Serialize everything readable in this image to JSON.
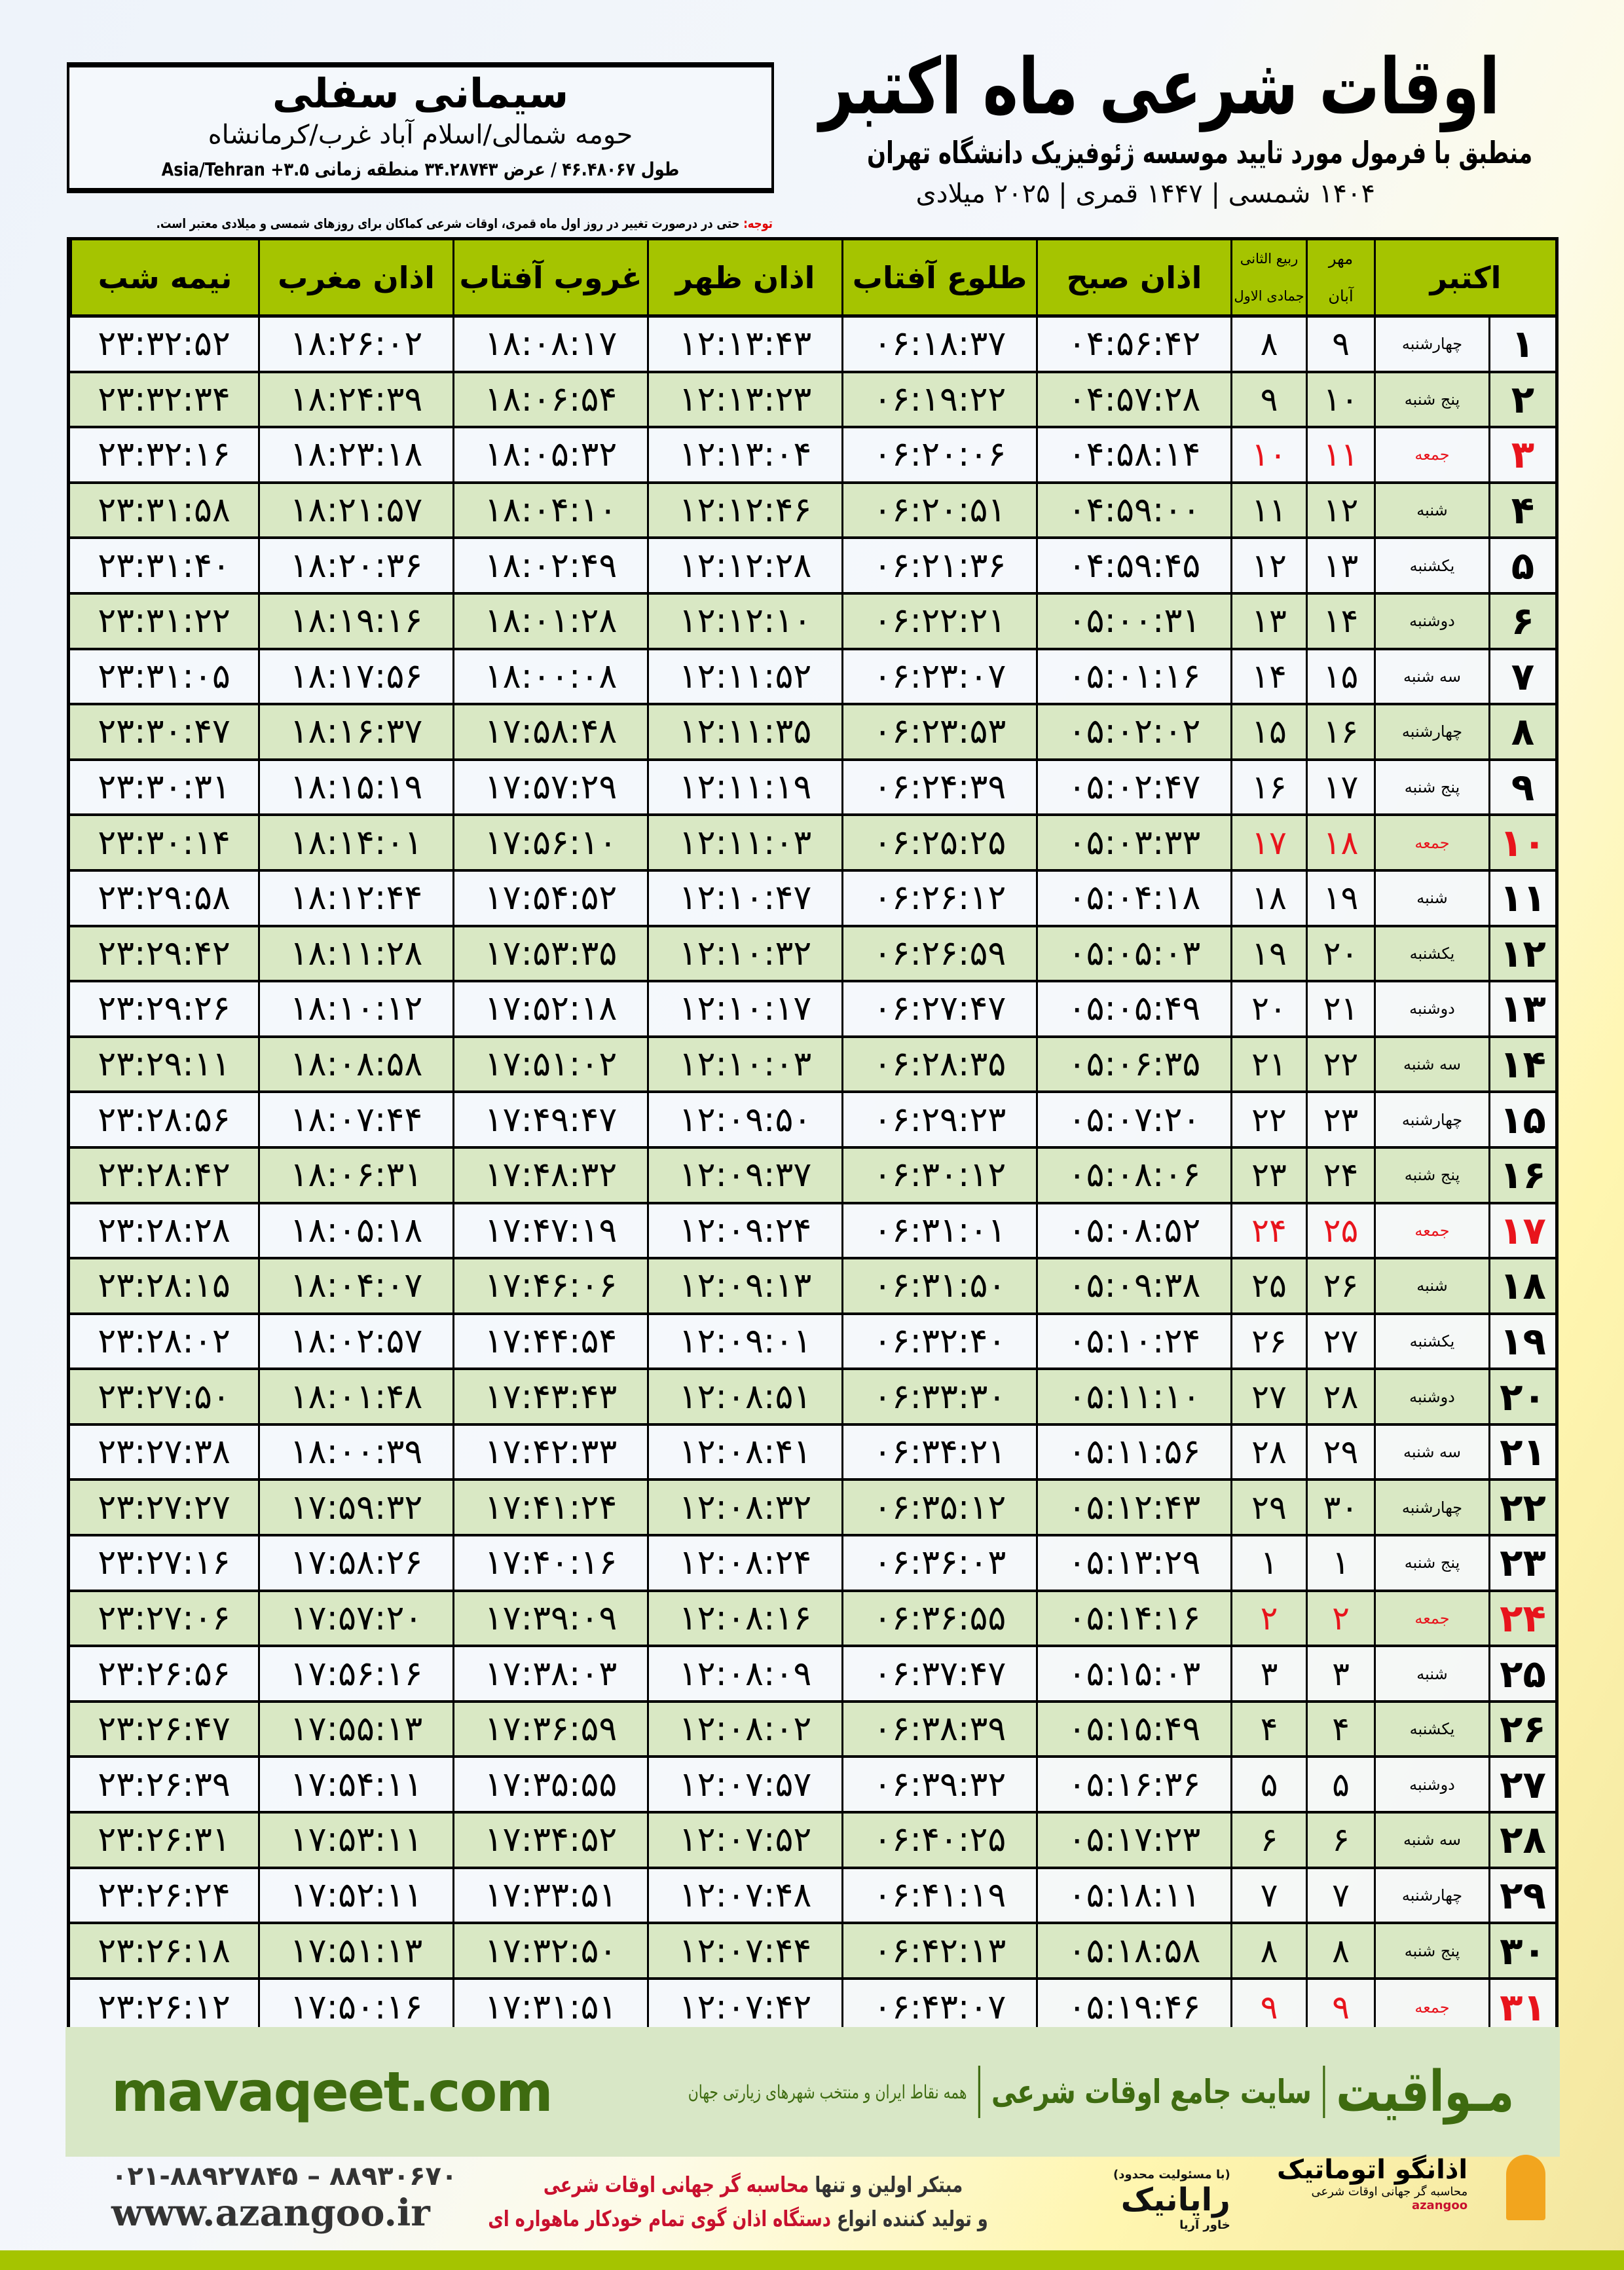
{
  "header": {
    "title": "اوقات شرعی ماه اکتبر",
    "subtitle": "منطبق با فرمول مورد تایید موسسه ژئوفیزیک دانشگاه تهران",
    "years": "۱۴۰۴ شمسی | ۱۴۴۷ قمری | ۲۰۲۵ میلادی"
  },
  "location": {
    "name": "سیمانی سفلی",
    "path": "حومه شمالی/اسلام آباد غرب/کرمانشاه",
    "coords": "طول ۴۶.۴۸۰۶۷ / عرض ۳۴.۲۸۷۴۳ منطقه زمانی ۳.۵+ Asia/Tehran"
  },
  "note": {
    "label": "توجه:",
    "text": " حتی در درصورت تغییر در روز اول ماه قمری، اوقات شرعی کماکان برای روزهای شمسی و میلادی معتبر است."
  },
  "colors": {
    "header_green": "#a5c400",
    "row_green": "#d9e8c4",
    "holiday_red": "#e8141c",
    "brand_green": "#3e6b10"
  },
  "table": {
    "headers": {
      "month": "اکتبر",
      "shamsi_top": "مهر",
      "shamsi_bottom": "آبان",
      "hijri_top": "ربیع الثانی",
      "hijri_bottom": "جمادی الاول",
      "fajr": "اذان صبح",
      "sunrise": "طلوع آفتاب",
      "dhuhr": "اذان ظهر",
      "sunset": "غروب آفتاب",
      "maghrib": "اذان مغرب",
      "midnight": "نیمه شب"
    },
    "rows": [
      [
        "۱",
        "چهارشنبه",
        "۹",
        "۸",
        "۰۴:۵۶:۴۲",
        "۰۶:۱۸:۳۷",
        "۱۲:۱۳:۴۳",
        "۱۸:۰۸:۱۷",
        "۱۸:۲۶:۰۲",
        "۲۳:۳۲:۵۲",
        false
      ],
      [
        "۲",
        "پنج شنبه",
        "۱۰",
        "۹",
        "۰۴:۵۷:۲۸",
        "۰۶:۱۹:۲۲",
        "۱۲:۱۳:۲۳",
        "۱۸:۰۶:۵۴",
        "۱۸:۲۴:۳۹",
        "۲۳:۳۲:۳۴",
        false
      ],
      [
        "۳",
        "جمعه",
        "۱۱",
        "۱۰",
        "۰۴:۵۸:۱۴",
        "۰۶:۲۰:۰۶",
        "۱۲:۱۳:۰۴",
        "۱۸:۰۵:۳۲",
        "۱۸:۲۳:۱۸",
        "۲۳:۳۲:۱۶",
        true
      ],
      [
        "۴",
        "شنبه",
        "۱۲",
        "۱۱",
        "۰۴:۵۹:۰۰",
        "۰۶:۲۰:۵۱",
        "۱۲:۱۲:۴۶",
        "۱۸:۰۴:۱۰",
        "۱۸:۲۱:۵۷",
        "۲۳:۳۱:۵۸",
        false
      ],
      [
        "۵",
        "یکشنبه",
        "۱۳",
        "۱۲",
        "۰۴:۵۹:۴۵",
        "۰۶:۲۱:۳۶",
        "۱۲:۱۲:۲۸",
        "۱۸:۰۲:۴۹",
        "۱۸:۲۰:۳۶",
        "۲۳:۳۱:۴۰",
        false
      ],
      [
        "۶",
        "دوشنبه",
        "۱۴",
        "۱۳",
        "۰۵:۰۰:۳۱",
        "۰۶:۲۲:۲۱",
        "۱۲:۱۲:۱۰",
        "۱۸:۰۱:۲۸",
        "۱۸:۱۹:۱۶",
        "۲۳:۳۱:۲۲",
        false
      ],
      [
        "۷",
        "سه شنبه",
        "۱۵",
        "۱۴",
        "۰۵:۰۱:۱۶",
        "۰۶:۲۳:۰۷",
        "۱۲:۱۱:۵۲",
        "۱۸:۰۰:۰۸",
        "۱۸:۱۷:۵۶",
        "۲۳:۳۱:۰۵",
        false
      ],
      [
        "۸",
        "چهارشنبه",
        "۱۶",
        "۱۵",
        "۰۵:۰۲:۰۲",
        "۰۶:۲۳:۵۳",
        "۱۲:۱۱:۳۵",
        "۱۷:۵۸:۴۸",
        "۱۸:۱۶:۳۷",
        "۲۳:۳۰:۴۷",
        false
      ],
      [
        "۹",
        "پنج شنبه",
        "۱۷",
        "۱۶",
        "۰۵:۰۲:۴۷",
        "۰۶:۲۴:۳۹",
        "۱۲:۱۱:۱۹",
        "۱۷:۵۷:۲۹",
        "۱۸:۱۵:۱۹",
        "۲۳:۳۰:۳۱",
        false
      ],
      [
        "۱۰",
        "جمعه",
        "۱۸",
        "۱۷",
        "۰۵:۰۳:۳۳",
        "۰۶:۲۵:۲۵",
        "۱۲:۱۱:۰۳",
        "۱۷:۵۶:۱۰",
        "۱۸:۱۴:۰۱",
        "۲۳:۳۰:۱۴",
        true
      ],
      [
        "۱۱",
        "شنبه",
        "۱۹",
        "۱۸",
        "۰۵:۰۴:۱۸",
        "۰۶:۲۶:۱۲",
        "۱۲:۱۰:۴۷",
        "۱۷:۵۴:۵۲",
        "۱۸:۱۲:۴۴",
        "۲۳:۲۹:۵۸",
        false
      ],
      [
        "۱۲",
        "یکشنبه",
        "۲۰",
        "۱۹",
        "۰۵:۰۵:۰۳",
        "۰۶:۲۶:۵۹",
        "۱۲:۱۰:۳۲",
        "۱۷:۵۳:۳۵",
        "۱۸:۱۱:۲۸",
        "۲۳:۲۹:۴۲",
        false
      ],
      [
        "۱۳",
        "دوشنبه",
        "۲۱",
        "۲۰",
        "۰۵:۰۵:۴۹",
        "۰۶:۲۷:۴۷",
        "۱۲:۱۰:۱۷",
        "۱۷:۵۲:۱۸",
        "۱۸:۱۰:۱۲",
        "۲۳:۲۹:۲۶",
        false
      ],
      [
        "۱۴",
        "سه شنبه",
        "۲۲",
        "۲۱",
        "۰۵:۰۶:۳۵",
        "۰۶:۲۸:۳۵",
        "۱۲:۱۰:۰۳",
        "۱۷:۵۱:۰۲",
        "۱۸:۰۸:۵۸",
        "۲۳:۲۹:۱۱",
        false
      ],
      [
        "۱۵",
        "چهارشنبه",
        "۲۳",
        "۲۲",
        "۰۵:۰۷:۲۰",
        "۰۶:۲۹:۲۳",
        "۱۲:۰۹:۵۰",
        "۱۷:۴۹:۴۷",
        "۱۸:۰۷:۴۴",
        "۲۳:۲۸:۵۶",
        false
      ],
      [
        "۱۶",
        "پنج شنبه",
        "۲۴",
        "۲۳",
        "۰۵:۰۸:۰۶",
        "۰۶:۳۰:۱۲",
        "۱۲:۰۹:۳۷",
        "۱۷:۴۸:۳۲",
        "۱۸:۰۶:۳۱",
        "۲۳:۲۸:۴۲",
        false
      ],
      [
        "۱۷",
        "جمعه",
        "۲۵",
        "۲۴",
        "۰۵:۰۸:۵۲",
        "۰۶:۳۱:۰۱",
        "۱۲:۰۹:۲۴",
        "۱۷:۴۷:۱۹",
        "۱۸:۰۵:۱۸",
        "۲۳:۲۸:۲۸",
        true
      ],
      [
        "۱۸",
        "شنبه",
        "۲۶",
        "۲۵",
        "۰۵:۰۹:۳۸",
        "۰۶:۳۱:۵۰",
        "۱۲:۰۹:۱۳",
        "۱۷:۴۶:۰۶",
        "۱۸:۰۴:۰۷",
        "۲۳:۲۸:۱۵",
        false
      ],
      [
        "۱۹",
        "یکشنبه",
        "۲۷",
        "۲۶",
        "۰۵:۱۰:۲۴",
        "۰۶:۳۲:۴۰",
        "۱۲:۰۹:۰۱",
        "۱۷:۴۴:۵۴",
        "۱۸:۰۲:۵۷",
        "۲۳:۲۸:۰۲",
        false
      ],
      [
        "۲۰",
        "دوشنبه",
        "۲۸",
        "۲۷",
        "۰۵:۱۱:۱۰",
        "۰۶:۳۳:۳۰",
        "۱۲:۰۸:۵۱",
        "۱۷:۴۳:۴۳",
        "۱۸:۰۱:۴۸",
        "۲۳:۲۷:۵۰",
        false
      ],
      [
        "۲۱",
        "سه شنبه",
        "۲۹",
        "۲۸",
        "۰۵:۱۱:۵۶",
        "۰۶:۳۴:۲۱",
        "۱۲:۰۸:۴۱",
        "۱۷:۴۲:۳۳",
        "۱۸:۰۰:۳۹",
        "۲۳:۲۷:۳۸",
        false
      ],
      [
        "۲۲",
        "چهارشنبه",
        "۳۰",
        "۲۹",
        "۰۵:۱۲:۴۳",
        "۰۶:۳۵:۱۲",
        "۱۲:۰۸:۳۲",
        "۱۷:۴۱:۲۴",
        "۱۷:۵۹:۳۲",
        "۲۳:۲۷:۲۷",
        false
      ],
      [
        "۲۳",
        "پنج شنبه",
        "۱",
        "۱",
        "۰۵:۱۳:۲۹",
        "۰۶:۳۶:۰۳",
        "۱۲:۰۸:۲۴",
        "۱۷:۴۰:۱۶",
        "۱۷:۵۸:۲۶",
        "۲۳:۲۷:۱۶",
        false
      ],
      [
        "۲۴",
        "جمعه",
        "۲",
        "۲",
        "۰۵:۱۴:۱۶",
        "۰۶:۳۶:۵۵",
        "۱۲:۰۸:۱۶",
        "۱۷:۳۹:۰۹",
        "۱۷:۵۷:۲۰",
        "۲۳:۲۷:۰۶",
        true
      ],
      [
        "۲۵",
        "شنبه",
        "۳",
        "۳",
        "۰۵:۱۵:۰۳",
        "۰۶:۳۷:۴۷",
        "۱۲:۰۸:۰۹",
        "۱۷:۳۸:۰۳",
        "۱۷:۵۶:۱۶",
        "۲۳:۲۶:۵۶",
        false
      ],
      [
        "۲۶",
        "یکشنبه",
        "۴",
        "۴",
        "۰۵:۱۵:۴۹",
        "۰۶:۳۸:۳۹",
        "۱۲:۰۸:۰۲",
        "۱۷:۳۶:۵۹",
        "۱۷:۵۵:۱۳",
        "۲۳:۲۶:۴۷",
        false
      ],
      [
        "۲۷",
        "دوشنبه",
        "۵",
        "۵",
        "۰۵:۱۶:۳۶",
        "۰۶:۳۹:۳۲",
        "۱۲:۰۷:۵۷",
        "۱۷:۳۵:۵۵",
        "۱۷:۵۴:۱۱",
        "۲۳:۲۶:۳۹",
        false
      ],
      [
        "۲۸",
        "سه شنبه",
        "۶",
        "۶",
        "۰۵:۱۷:۲۳",
        "۰۶:۴۰:۲۵",
        "۱۲:۰۷:۵۲",
        "۱۷:۳۴:۵۲",
        "۱۷:۵۳:۱۱",
        "۲۳:۲۶:۳۱",
        false
      ],
      [
        "۲۹",
        "چهارشنبه",
        "۷",
        "۷",
        "۰۵:۱۸:۱۱",
        "۰۶:۴۱:۱۹",
        "۱۲:۰۷:۴۸",
        "۱۷:۳۳:۵۱",
        "۱۷:۵۲:۱۱",
        "۲۳:۲۶:۲۴",
        false
      ],
      [
        "۳۰",
        "پنج شنبه",
        "۸",
        "۸",
        "۰۵:۱۸:۵۸",
        "۰۶:۴۲:۱۳",
        "۱۲:۰۷:۴۴",
        "۱۷:۳۲:۵۰",
        "۱۷:۵۱:۱۳",
        "۲۳:۲۶:۱۸",
        false
      ],
      [
        "۳۱",
        "جمعه",
        "۹",
        "۹",
        "۰۵:۱۹:۴۶",
        "۰۶:۴۳:۰۷",
        "۱۲:۰۷:۴۲",
        "۱۷:۳۱:۵۱",
        "۱۷:۵۰:۱۶",
        "۲۳:۲۶:۱۲",
        true
      ]
    ]
  },
  "footer": {
    "brand": "مـواقیت",
    "tagline": "سایت جامع اوقات شرعی",
    "sub": "همه نقاط ایران و منتخب شهرهای زیارتی جهان",
    "site": "mavaqeet.com",
    "phones": "۰۲۱-۸۸۹۲۷۸۴۵ – ۸۸۹۳۰۶۷۰",
    "web": "www.azangoo.ir",
    "promo1a": "مبتکر اولین و تنها ",
    "promo1b": "محاسبه گر جهانی اوقات شرعی",
    "promo2a": "و تولید کننده انواع ",
    "promo2b": "دستگاه اذان گوی تمام خودکار ماهواره ای",
    "raianik_small": "(با مسئولیت محدود)",
    "raianik": "رایانیک",
    "raianik_sub": "خاور آریا",
    "azangoo": "اذانگو اتوماتیک",
    "azangoo_sub": "محاسبه گر جهانی اوقات شرعی",
    "azangoo_en": "azangoo"
  }
}
